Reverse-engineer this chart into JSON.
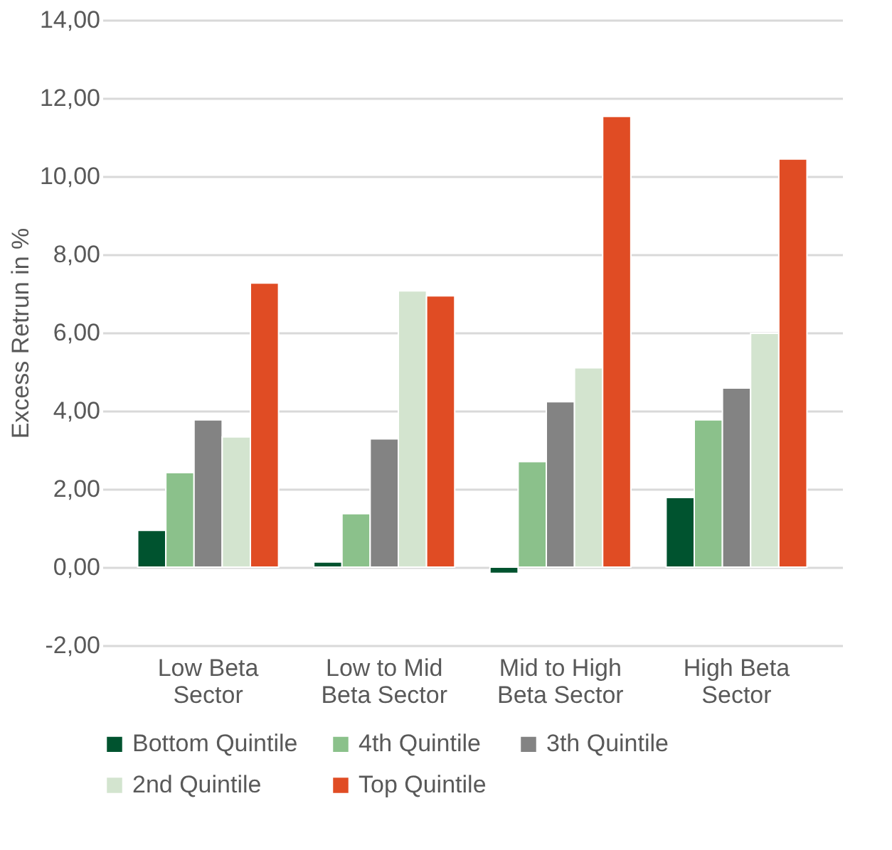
{
  "chart_data": {
    "type": "bar",
    "ylabel": "Excess Retrun in %",
    "categories": [
      "Low Beta Sector",
      "Low to Mid Beta Sector",
      "Mid to High Beta Sector",
      "High Beta Sector"
    ],
    "series": [
      {
        "name": "Bottom Quintile",
        "color": "#00532f",
        "values": [
          0.94,
          0.13,
          -0.16,
          1.78
        ]
      },
      {
        "name": "4th Quintile",
        "color": "#8bc18b",
        "values": [
          2.42,
          1.37,
          2.7,
          3.77
        ]
      },
      {
        "name": "3th Quintile",
        "color": "#838383",
        "values": [
          3.77,
          3.28,
          4.23,
          4.58
        ]
      },
      {
        "name": "2nd Quintile",
        "color": "#d3e4cf",
        "values": [
          3.33,
          7.07,
          5.1,
          5.98
        ]
      },
      {
        "name": "Top Quintile",
        "color": "#e04c24",
        "values": [
          7.27,
          6.94,
          11.53,
          10.44
        ]
      }
    ],
    "ylim": [
      -2,
      14
    ],
    "yticks": [
      {
        "value": -2,
        "label": "-2,00"
      },
      {
        "value": 0,
        "label": "0,00"
      },
      {
        "value": 2,
        "label": "2,00"
      },
      {
        "value": 4,
        "label": "4,00"
      },
      {
        "value": 6,
        "label": "6,00"
      },
      {
        "value": 8,
        "label": "8,00"
      },
      {
        "value": 10,
        "label": "10,00"
      },
      {
        "value": 12,
        "label": "12,00"
      },
      {
        "value": 14,
        "label": "14,00"
      }
    ],
    "grid": "y",
    "legend": "bottom"
  }
}
